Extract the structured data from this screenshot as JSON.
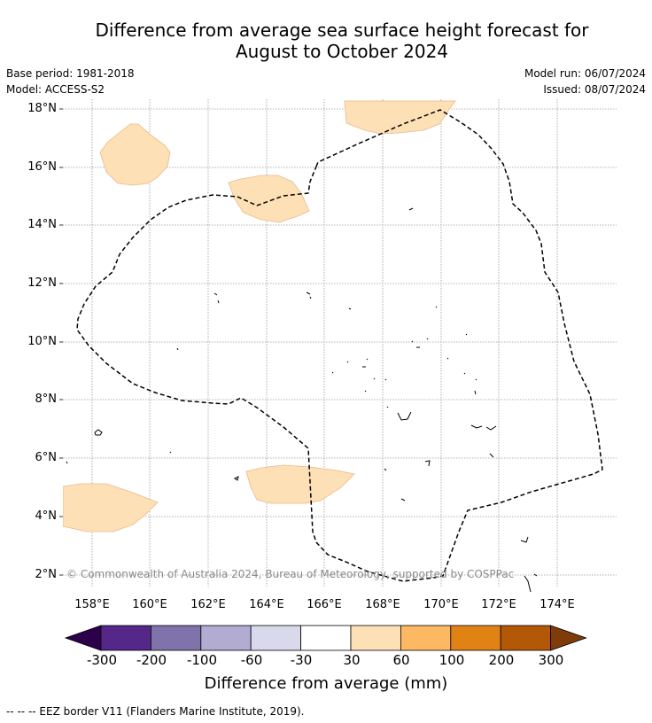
{
  "title": {
    "line1": "Difference from average sea surface height forecast for",
    "line2": "August to October 2024"
  },
  "meta": {
    "base_period": "Base period: 1981-2018",
    "model": "Model: ACCESS-S2",
    "model_run": "Model run: 06/07/2024",
    "issued": "Issued: 08/07/2024"
  },
  "axes": {
    "lat_labels": [
      "18°N",
      "16°N",
      "14°N",
      "12°N",
      "10°N",
      "8°N",
      "6°N",
      "4°N",
      "2°N"
    ],
    "lon_labels": [
      "158°E",
      "160°E",
      "162°E",
      "164°E",
      "166°E",
      "168°E",
      "170°E",
      "172°E",
      "174°E"
    ]
  },
  "copyright": "© Commonwealth of Australia 2024, Bureau of Meteorology, supported by COSPPac",
  "colorbar": {
    "title": "Difference from average (mm)",
    "labels": [
      "-300",
      "-200",
      "-100",
      "-60",
      "-30",
      "30",
      "60",
      "100",
      "200",
      "300"
    ],
    "colors": {
      "below": "#2d004b",
      "bins": [
        "#542788",
        "#8073ac",
        "#b2abd2",
        "#d8daeb",
        "#ffffff",
        "#fee0b6",
        "#fdb863",
        "#e08214",
        "#b35806"
      ],
      "above": "#7f3b08"
    }
  },
  "legend": {
    "eez_text": "--  --  -- EEZ border V11 (Flanders Marine Institute, 2019)."
  },
  "map": {
    "anomaly_fill": "#fee0b6",
    "anomaly_outline": "#e9b98a",
    "eez_color": "#000000",
    "grid_color": "#9a9a9a"
  }
}
